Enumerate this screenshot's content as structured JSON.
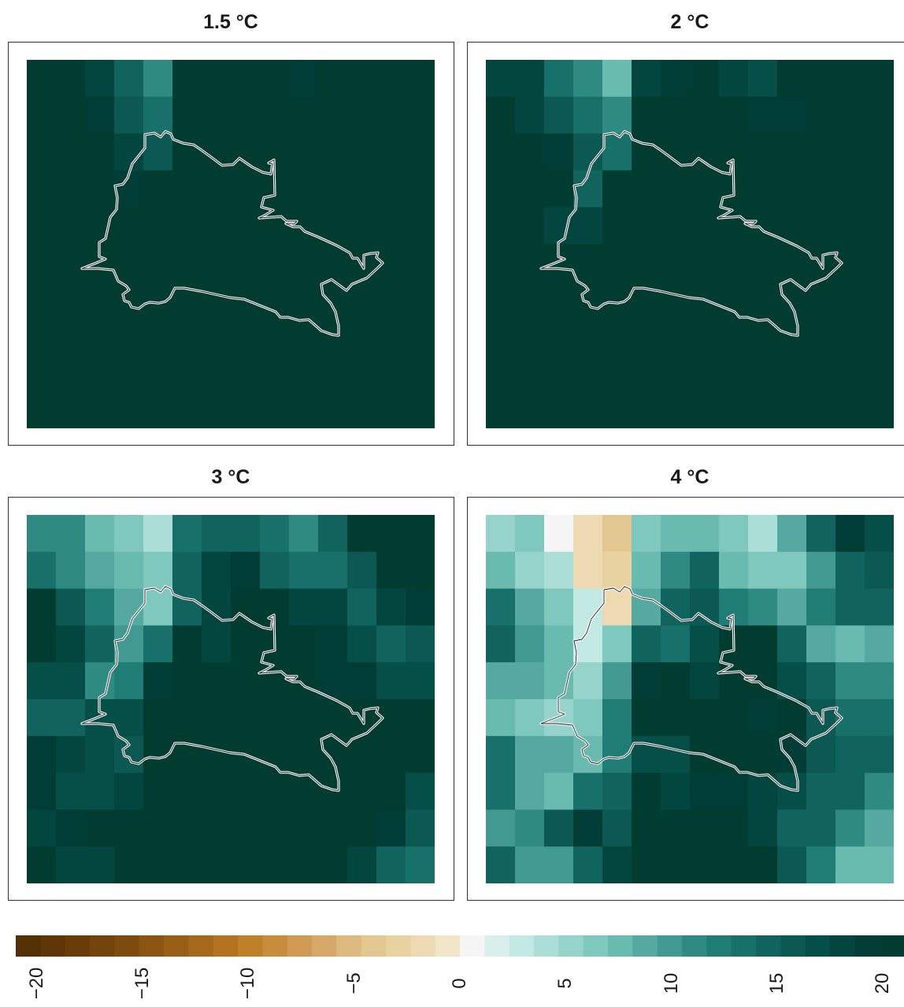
{
  "panels": [
    {
      "title": "1.5 °C",
      "key": "p15"
    },
    {
      "title": "2 °C",
      "key": "p2"
    },
    {
      "title": "3 °C",
      "key": "p3"
    },
    {
      "title": "4 °C",
      "key": "p4"
    }
  ],
  "colorbar": {
    "ticks": [
      "−20",
      "−15",
      "−10",
      "−5",
      "0",
      "5",
      "10",
      "15",
      "20"
    ],
    "tick_values": [
      -20,
      -15,
      -10,
      -5,
      0,
      5,
      10,
      15,
      20
    ],
    "min": -21,
    "max": 21,
    "colors": [
      "#543005",
      "#5e3607",
      "#683d09",
      "#72440b",
      "#7d4b0e",
      "#8a5512",
      "#985f16",
      "#a6691b",
      "#b3741f",
      "#bf8128",
      "#c78d3d",
      "#cf9b54",
      "#d6a96a",
      "#dcb97f",
      "#e2c890",
      "#e8d2a0",
      "#edd9b2",
      "#f2e6c8",
      "#f5f5f5",
      "#d8efec",
      "#c2e9e3",
      "#acded8",
      "#95d3cb",
      "#7ec8bd",
      "#69baaf",
      "#55a9a0",
      "#419991",
      "#2f8a82",
      "#207d76",
      "#17706a",
      "#10645d",
      "#0b5952",
      "#064f48",
      "#03463f",
      "#013d37",
      "#003c30"
    ]
  },
  "grid_values": {
    "p15": [
      [
        20,
        20,
        18,
        14,
        11,
        20,
        20,
        20,
        20,
        19,
        20,
        20,
        20,
        20
      ],
      [
        20,
        20,
        19,
        16,
        13,
        20,
        20,
        20,
        20,
        20,
        20,
        20,
        20,
        20
      ],
      [
        20,
        20,
        20,
        18,
        16,
        20,
        20,
        20,
        20,
        20,
        20,
        20,
        20,
        20
      ],
      [
        20,
        20,
        20,
        19,
        20,
        20,
        20,
        20,
        20,
        20,
        20,
        20,
        20,
        20
      ],
      [
        20,
        20,
        20,
        20,
        20,
        20,
        20,
        20,
        20,
        20,
        20,
        20,
        20,
        20
      ],
      [
        20,
        20,
        20,
        20,
        20,
        20,
        20,
        20,
        20,
        20,
        20,
        20,
        20,
        20
      ],
      [
        20,
        20,
        20,
        20,
        20,
        20,
        20,
        20,
        20,
        20,
        20,
        20,
        20,
        20
      ],
      [
        20,
        20,
        20,
        20,
        20,
        20,
        20,
        20,
        20,
        20,
        20,
        20,
        20,
        20
      ],
      [
        20,
        20,
        20,
        20,
        20,
        20,
        20,
        20,
        20,
        20,
        20,
        20,
        20,
        20
      ],
      [
        20,
        20,
        20,
        20,
        20,
        20,
        20,
        20,
        20,
        20,
        20,
        20,
        20,
        20
      ]
    ],
    "p2": [
      [
        18,
        18,
        13,
        11,
        8,
        18,
        19,
        20,
        18,
        17,
        20,
        20,
        20,
        20
      ],
      [
        20,
        18,
        16,
        13,
        11,
        20,
        20,
        20,
        20,
        19,
        19,
        20,
        20,
        20
      ],
      [
        20,
        20,
        19,
        16,
        13,
        20,
        20,
        20,
        20,
        20,
        20,
        20,
        20,
        20
      ],
      [
        20,
        20,
        20,
        14,
        20,
        20,
        20,
        20,
        20,
        20,
        20,
        20,
        20,
        20
      ],
      [
        20,
        20,
        18,
        18,
        20,
        20,
        20,
        20,
        20,
        20,
        20,
        20,
        20,
        20
      ],
      [
        20,
        20,
        20,
        20,
        20,
        20,
        20,
        20,
        20,
        20,
        20,
        20,
        20,
        20
      ],
      [
        20,
        20,
        20,
        20,
        20,
        20,
        20,
        20,
        20,
        20,
        20,
        20,
        20,
        20
      ],
      [
        20,
        20,
        20,
        20,
        20,
        20,
        20,
        20,
        20,
        20,
        20,
        20,
        20,
        20
      ],
      [
        20,
        20,
        20,
        20,
        20,
        20,
        20,
        20,
        20,
        20,
        20,
        20,
        20,
        20
      ],
      [
        20,
        20,
        20,
        20,
        20,
        20,
        20,
        20,
        20,
        20,
        20,
        20,
        20,
        20
      ]
    ],
    "p3": [
      [
        11,
        11,
        8,
        6,
        4,
        13,
        14,
        15,
        13,
        11,
        15,
        20,
        21,
        20
      ],
      [
        13,
        11,
        9,
        7,
        6,
        15,
        18,
        19,
        15,
        13,
        13,
        16,
        20,
        21
      ],
      [
        20,
        16,
        12,
        9,
        6,
        15,
        18,
        20,
        20,
        18,
        18,
        15,
        18,
        19
      ],
      [
        21,
        18,
        14,
        10,
        13,
        20,
        18,
        20,
        20,
        20,
        19,
        17,
        14,
        16
      ],
      [
        17,
        17,
        11,
        12,
        19,
        20,
        20,
        20,
        20,
        20,
        19,
        19,
        17,
        17
      ],
      [
        15,
        14,
        17,
        17,
        20,
        20,
        20,
        20,
        20,
        20,
        20,
        20,
        20,
        20
      ],
      [
        19,
        18,
        17,
        16,
        20,
        20,
        20,
        20,
        20,
        20,
        20,
        20,
        20,
        20
      ],
      [
        19,
        17,
        17,
        18,
        20,
        20,
        20,
        20,
        20,
        20,
        20,
        20,
        20,
        17
      ],
      [
        18,
        19,
        20,
        20,
        20,
        20,
        20,
        20,
        20,
        20,
        20,
        20,
        19,
        16
      ],
      [
        20,
        18,
        18,
        20,
        20,
        20,
        20,
        20,
        20,
        20,
        20,
        18,
        15,
        13
      ]
    ],
    "p4": [
      [
        5,
        6,
        0,
        -2,
        -4,
        6,
        7,
        8,
        6,
        4,
        9,
        15,
        19,
        17
      ],
      [
        7,
        5,
        4,
        -2,
        -3,
        8,
        11,
        14,
        8,
        6,
        6,
        10,
        15,
        16
      ],
      [
        13,
        9,
        6,
        3,
        -2,
        9,
        14,
        16,
        12,
        11,
        9,
        12,
        14,
        15
      ],
      [
        14,
        10,
        7,
        3,
        6,
        15,
        13,
        17,
        20,
        20,
        14,
        9,
        8,
        9
      ],
      [
        9,
        9,
        7,
        5,
        10,
        19,
        20,
        18,
        20,
        20,
        17,
        15,
        11,
        11
      ],
      [
        8,
        6,
        5,
        6,
        12,
        20,
        20,
        20,
        20,
        19,
        20,
        16,
        13,
        13
      ],
      [
        13,
        9,
        9,
        8,
        12,
        17,
        17,
        20,
        20,
        20,
        19,
        16,
        14,
        14
      ],
      [
        13,
        9,
        8,
        13,
        14,
        20,
        18,
        19,
        19,
        18,
        17,
        15,
        15,
        11
      ],
      [
        10,
        11,
        16,
        19,
        16,
        20,
        20,
        20,
        20,
        18,
        14,
        14,
        11,
        9
      ],
      [
        14,
        10,
        10,
        14,
        18,
        20,
        20,
        20,
        20,
        20,
        16,
        12,
        8,
        7
      ]
    ]
  }
}
